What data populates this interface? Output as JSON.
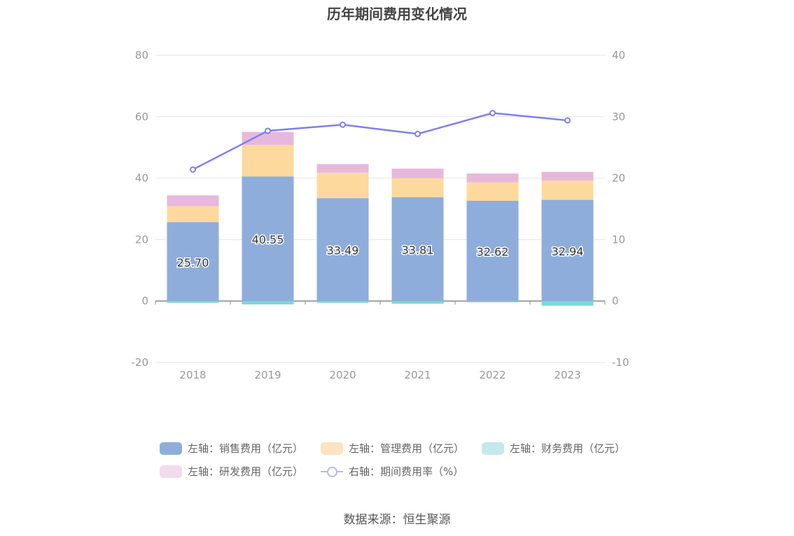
{
  "title": "历年期间费用变化情况",
  "source": "数据来源：恒生聚源",
  "legend": [
    {
      "label": "左轴：销售费用（亿元）",
      "color": "#8eaddb"
    },
    {
      "label": "左轴：管理费用（亿元）",
      "color": "#fde3bf"
    },
    {
      "label": "左轴：财务费用（亿元）",
      "color": "#c3e9ec"
    },
    {
      "label": "左轴：研发费用（亿元）",
      "color": "#f2dcec"
    },
    {
      "label": "右轴：期间费用率（%）",
      "color": "#8a8af0"
    }
  ],
  "chart_data": {
    "type": "bar",
    "title": "历年期间费用变化情况",
    "categories": [
      "2018",
      "2019",
      "2020",
      "2021",
      "2022",
      "2023"
    ],
    "series": [
      {
        "name": "左轴：销售费用（亿元）",
        "axis": "left",
        "color": "#8eaddb",
        "values": [
          25.7,
          40.55,
          33.49,
          33.81,
          32.62,
          32.94
        ]
      },
      {
        "name": "左轴：管理费用（亿元）",
        "axis": "left",
        "color": "#fdd99e",
        "values": [
          5.2,
          10.3,
          8.3,
          6.2,
          6.0,
          6.3
        ]
      },
      {
        "name": "左轴：财务费用（亿元）",
        "axis": "left",
        "color": "#7fd7da",
        "values": [
          -0.6,
          -1.1,
          -0.6,
          -0.9,
          -0.4,
          -1.5
        ]
      },
      {
        "name": "左轴：研发费用（亿元）",
        "axis": "left",
        "color": "#e6b9dc",
        "values": [
          3.5,
          4.2,
          2.8,
          3.1,
          2.9,
          2.8
        ]
      },
      {
        "name": "右轴：期间费用率（%）",
        "axis": "right",
        "type": "line",
        "color": "#7f7fec",
        "values": [
          21.4,
          27.7,
          28.7,
          27.2,
          30.6,
          29.4
        ]
      }
    ],
    "data_labels": [
      "25.70",
      "40.55",
      "33.49",
      "33.81",
      "32.62",
      "32.94"
    ],
    "ylim_left": [
      -20,
      80
    ],
    "yticks_left": [
      "80",
      "60",
      "40",
      "20",
      "0",
      "-20"
    ],
    "ytick_values_left": [
      80,
      60,
      40,
      20,
      0,
      -20
    ],
    "ylim_right": [
      -10,
      40
    ],
    "yticks_right": [
      "40",
      "30",
      "20",
      "10",
      "0",
      "-10"
    ],
    "ytick_values_right": [
      40,
      30,
      20,
      10,
      0,
      -10
    ],
    "grid": true,
    "legend_position": "bottom"
  }
}
